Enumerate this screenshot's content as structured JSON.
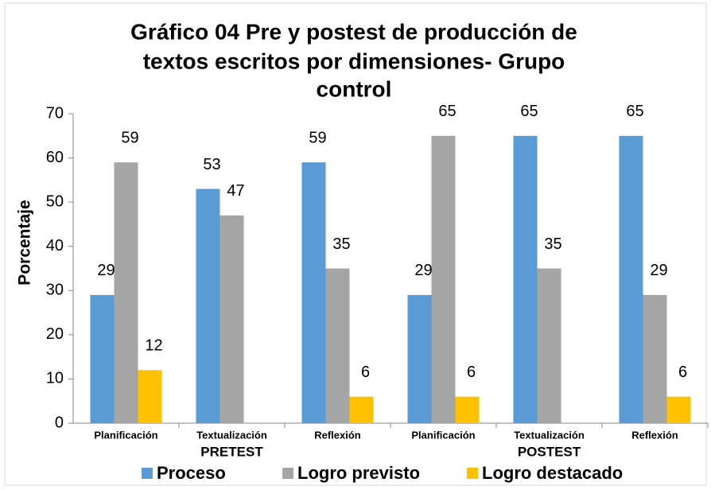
{
  "chart_data": {
    "type": "bar",
    "title": [
      "Gráfico 04 Pre y postest de producción de",
      "textos escritos por dimensiones- Grupo",
      "control"
    ],
    "y_label": "Porcentaje",
    "categories": [
      "Planificación",
      "Textualización",
      "Reflexión",
      "Planificación",
      "Textualización",
      "Reflexión"
    ],
    "groups": [
      "PRETEST",
      "POSTEST"
    ],
    "series": [
      {
        "name": "Proceso",
        "color": "#5b9bd5",
        "values": [
          29,
          53,
          59,
          29,
          65,
          65
        ]
      },
      {
        "name": "Logro previsto",
        "color": "#a5a5a5",
        "values": [
          59,
          47,
          35,
          65,
          35,
          29
        ]
      },
      {
        "name": "Logro destacado",
        "color": "#ffc000",
        "values": [
          12,
          null,
          6,
          6,
          null,
          6
        ]
      }
    ],
    "ylim": [
      0,
      70
    ],
    "yticks": [
      0,
      10,
      20,
      30,
      40,
      50,
      60,
      70
    ],
    "grid": false,
    "legend": "bottom"
  }
}
